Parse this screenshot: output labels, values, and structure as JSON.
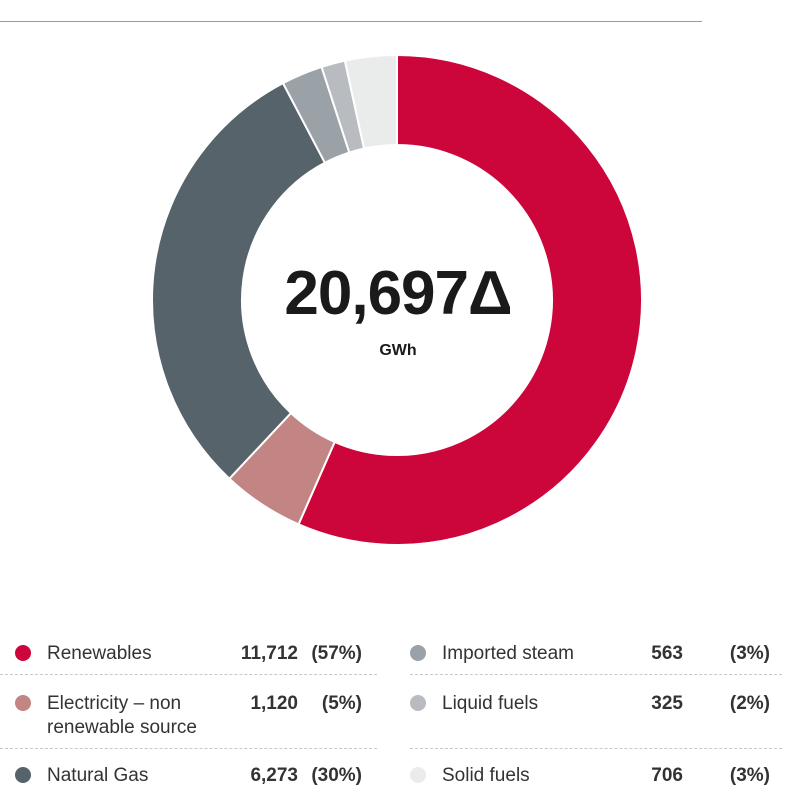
{
  "chart_data": {
    "type": "donut",
    "center": {
      "value": "20,697Δ",
      "unit": "GWh"
    },
    "slices": [
      {
        "name": "Renewables",
        "value": 11712,
        "value_label": "11,712",
        "percent_label": "(57%)",
        "color": "#cc053b"
      },
      {
        "name": "Electricity – non renewable source",
        "value": 1120,
        "value_label": "1,120",
        "percent_label": "(5%)",
        "color": "#c38584"
      },
      {
        "name": "Natural Gas",
        "value": 6273,
        "value_label": "6,273",
        "percent_label": "(30%)",
        "color": "#56636a"
      },
      {
        "name": "Imported steam",
        "value": 563,
        "value_label": "563",
        "percent_label": "(3%)",
        "color": "#9aa1a7"
      },
      {
        "name": "Liquid fuels",
        "value": 325,
        "value_label": "325",
        "percent_label": "(2%)",
        "color": "#b8bcc1"
      },
      {
        "name": "Solid fuels",
        "value": 706,
        "value_label": "706",
        "percent_label": "(3%)",
        "color": "#eaebeb"
      }
    ]
  },
  "legend": {
    "left": [
      {
        "label_lines": [
          "Renewables"
        ],
        "value": "11,712",
        "percent": "(57%)",
        "color": "#cc053b"
      },
      {
        "label_lines": [
          "Electricity – non",
          "renewable source"
        ],
        "value": "1,120",
        "percent": "(5%)",
        "color": "#c38584"
      },
      {
        "label_lines": [
          "Natural Gas"
        ],
        "value": "6,273",
        "percent": "(30%)",
        "color": "#56636a"
      }
    ],
    "right": [
      {
        "label_lines": [
          "Imported steam"
        ],
        "value": "563",
        "percent": "(3%)",
        "color": "#9aa1a7"
      },
      {
        "label_lines": [
          "Liquid fuels"
        ],
        "value": "325",
        "percent": "(2%)",
        "color": "#b8bcc1"
      },
      {
        "label_lines": [
          "Solid fuels"
        ],
        "value": "706",
        "percent": "(3%)",
        "color": "#eaebeb"
      }
    ]
  }
}
